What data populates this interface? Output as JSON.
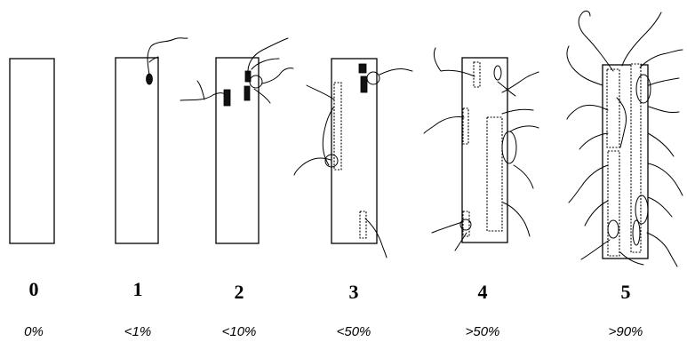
{
  "panels": [
    {
      "grade": "0",
      "coverage": "0%"
    },
    {
      "grade": "1",
      "coverage": "<1%"
    },
    {
      "grade": "2",
      "coverage": "<10%"
    },
    {
      "grade": "3",
      "coverage": "<50%"
    },
    {
      "grade": "4",
      "coverage": ">50%"
    },
    {
      "grade": "5",
      "coverage": ">90%"
    }
  ]
}
